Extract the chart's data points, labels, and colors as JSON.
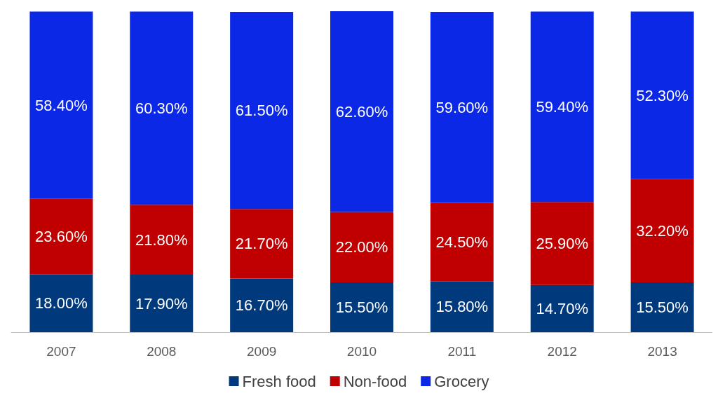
{
  "chart_data": {
    "type": "bar",
    "stacked": true,
    "categories": [
      "2007",
      "2008",
      "2009",
      "2010",
      "2011",
      "2012",
      "2013"
    ],
    "series": [
      {
        "name": "Fresh food",
        "color": "#003a7d",
        "values": [
          18.0,
          17.9,
          16.7,
          15.5,
          15.8,
          14.7,
          15.5
        ],
        "value_labels": [
          "18.00%",
          "17.90%",
          "16.70%",
          "15.50%",
          "15.80%",
          "14.70%",
          "15.50%"
        ]
      },
      {
        "name": "Non-food",
        "color": "#c00000",
        "values": [
          23.6,
          21.8,
          21.7,
          22.0,
          24.5,
          25.9,
          32.2
        ],
        "value_labels": [
          "23.60%",
          "21.80%",
          "21.70%",
          "22.00%",
          "24.50%",
          "25.90%",
          "32.20%"
        ]
      },
      {
        "name": "Grocery",
        "color": "#0a28e6",
        "values": [
          58.4,
          60.3,
          61.5,
          62.6,
          59.6,
          59.4,
          52.3
        ],
        "value_labels": [
          "58.40%",
          "60.30%",
          "61.50%",
          "62.60%",
          "59.60%",
          "59.40%",
          "52.30%"
        ]
      }
    ],
    "legend": "bottom"
  }
}
